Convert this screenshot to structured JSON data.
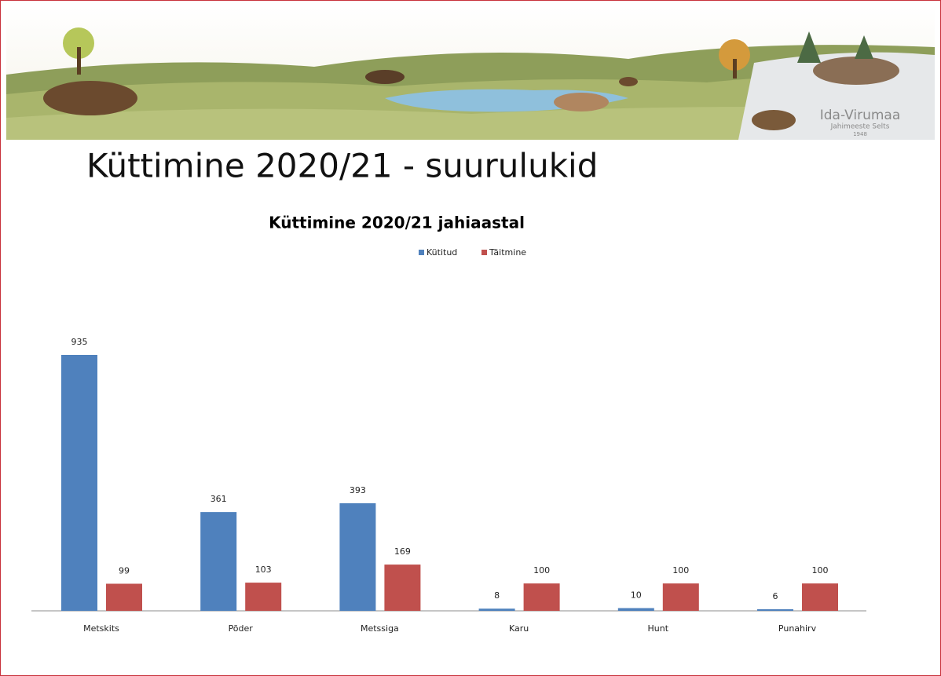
{
  "slide_title": "Küttimine 2020/21 - suurulukid",
  "banner": {
    "org_name": "Ida-Virumaa",
    "org_subtitle": "Jahimeeste Selts",
    "org_year": "1948"
  },
  "chart_data": {
    "type": "bar",
    "title": "Küttimine 2020/21 jahiaastal",
    "categories": [
      "Metskits",
      "Põder",
      "Metssiga",
      "Karu",
      "Hunt",
      "Punahirv"
    ],
    "series": [
      {
        "name": "Kütitud",
        "color": "#4f81bd",
        "values": [
          935,
          361,
          393,
          8,
          10,
          6
        ]
      },
      {
        "name": "Täitmine",
        "color": "#c0504d",
        "values": [
          99,
          103,
          169,
          100,
          100,
          100
        ]
      }
    ]
  }
}
